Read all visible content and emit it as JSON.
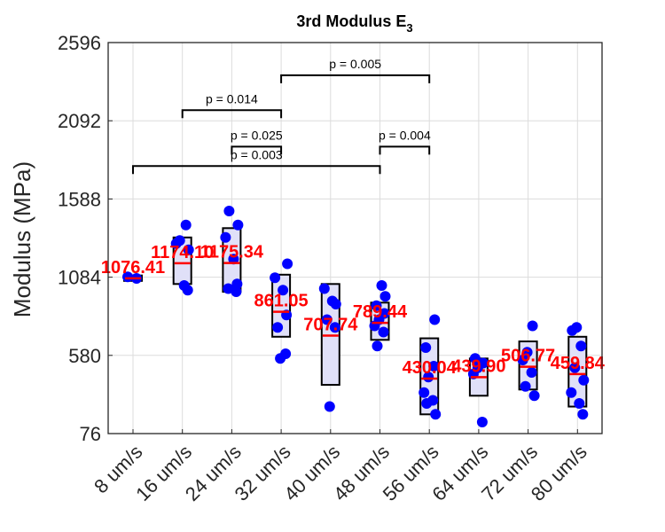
{
  "chart_data": {
    "type": "box",
    "title": "3rd Modulus E",
    "title_subscript": "3",
    "ylabel": "Modulus (MPa)",
    "xlabel": "",
    "ylim": [
      76,
      2596
    ],
    "yticks": [
      76,
      580,
      1084,
      1588,
      2092,
      2596
    ],
    "grid": true,
    "categories": [
      "8 um/s",
      "16 um/s",
      "24 um/s",
      "32 um/s",
      "40 um/s",
      "48 um/s",
      "56 um/s",
      "64 um/s",
      "72 um/s",
      "80 um/s"
    ],
    "means": [
      1076.41,
      1174.1,
      1175.34,
      861.05,
      707.74,
      789.44,
      430.04,
      439.9,
      506.77,
      459.84
    ],
    "mean_labels": [
      "1076.41",
      "1174.10",
      "1175.34",
      "861.05",
      "707.74",
      "789.44",
      "430.04",
      "439.90",
      "506.77",
      "459.84"
    ],
    "boxes": [
      {
        "low": 1060,
        "high": 1095
      },
      {
        "low": 1040,
        "high": 1340
      },
      {
        "low": 990,
        "high": 1400
      },
      {
        "low": 700,
        "high": 1100
      },
      {
        "low": 390,
        "high": 1040
      },
      {
        "low": 680,
        "high": 920
      },
      {
        "low": 200,
        "high": 690
      },
      {
        "low": 320,
        "high": 560
      },
      {
        "low": 360,
        "high": 670
      },
      {
        "low": 250,
        "high": 700
      }
    ],
    "points": [
      [
        1086,
        1076
      ],
      [
        1420,
        1320,
        1260,
        1300,
        1030,
        1000
      ],
      [
        1510,
        1420,
        1340,
        1200,
        1040,
        1010,
        990
      ],
      [
        1170,
        1080,
        1000,
        840,
        760,
        590,
        560
      ],
      [
        1010,
        930,
        910,
        810,
        760,
        250
      ],
      [
        1030,
        960,
        900,
        850,
        810,
        770,
        730,
        640
      ],
      [
        810,
        630,
        510,
        440,
        340,
        290,
        270,
        200
      ],
      [
        560,
        530,
        500,
        460,
        150
      ],
      [
        770,
        600,
        550,
        470,
        380,
        320
      ],
      [
        760,
        740,
        640,
        500,
        420,
        340,
        270,
        200
      ]
    ],
    "comparisons": [
      {
        "from": 0,
        "to": 5,
        "p": "p = 0.003"
      },
      {
        "from": 1,
        "to": 3,
        "p": "p = 0.014"
      },
      {
        "from": 2,
        "to": 3,
        "p": "p = 0.025"
      },
      {
        "from": 3,
        "to": 6,
        "p": "p = 0.005"
      },
      {
        "from": 5,
        "to": 6,
        "p": "p = 0.004"
      }
    ],
    "colors": {
      "points": "#0000ff",
      "mean": "#ff0000",
      "box_fill": "#e0e0f8",
      "box_edge": "#000000",
      "grid": "#dcdcdc"
    }
  }
}
